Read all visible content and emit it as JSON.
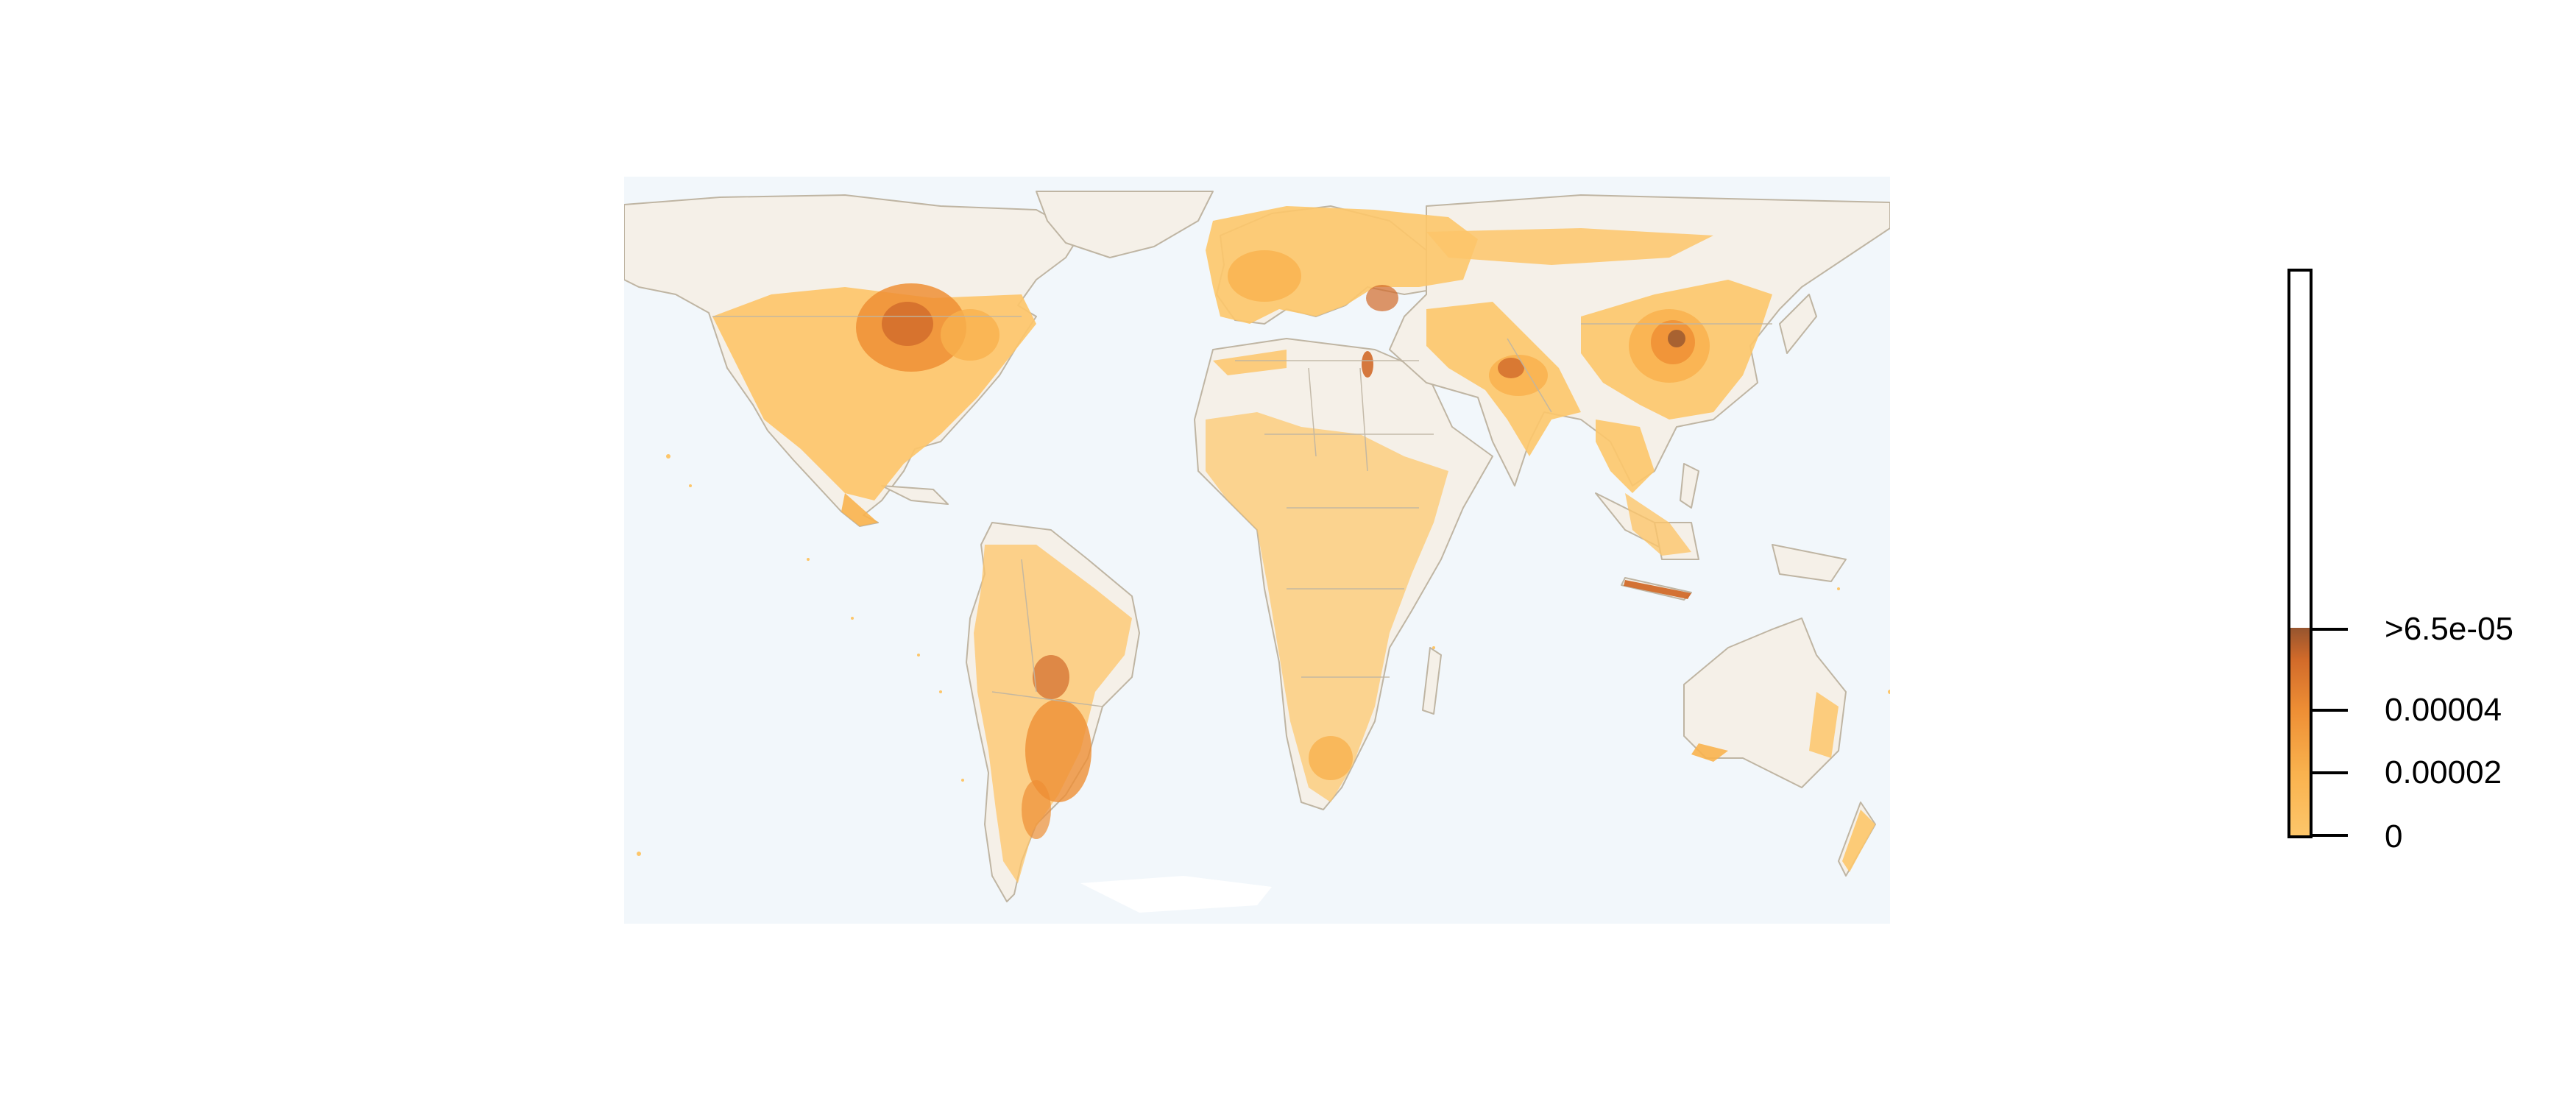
{
  "map": {
    "projection": "equirectangular world map",
    "ocean_color": "#F2F7FB",
    "land_color": "#F5F0E8",
    "border_color": "#BFB5A3",
    "density_palette": [
      "#FDC66A",
      "#F9B24E",
      "#EE8F35",
      "#D16A2A",
      "#96552F"
    ],
    "hotspots": [
      "central-united-states",
      "eastern-china",
      "northern-india",
      "java",
      "la-plata-basin",
      "nile-delta",
      "western-europe"
    ]
  },
  "legend": {
    "ticks": [
      {
        "label": ">6.5e-05",
        "value": 6.5e-05
      },
      {
        "label": "0.00004",
        "value": 4e-05
      },
      {
        "label": "0.00002",
        "value": 2e-05
      },
      {
        "label": "0",
        "value": 0
      }
    ],
    "colors_low_to_high": [
      "#FDC66A",
      "#F9B24E",
      "#EE8F35",
      "#D16A2A",
      "#96552F"
    ]
  }
}
